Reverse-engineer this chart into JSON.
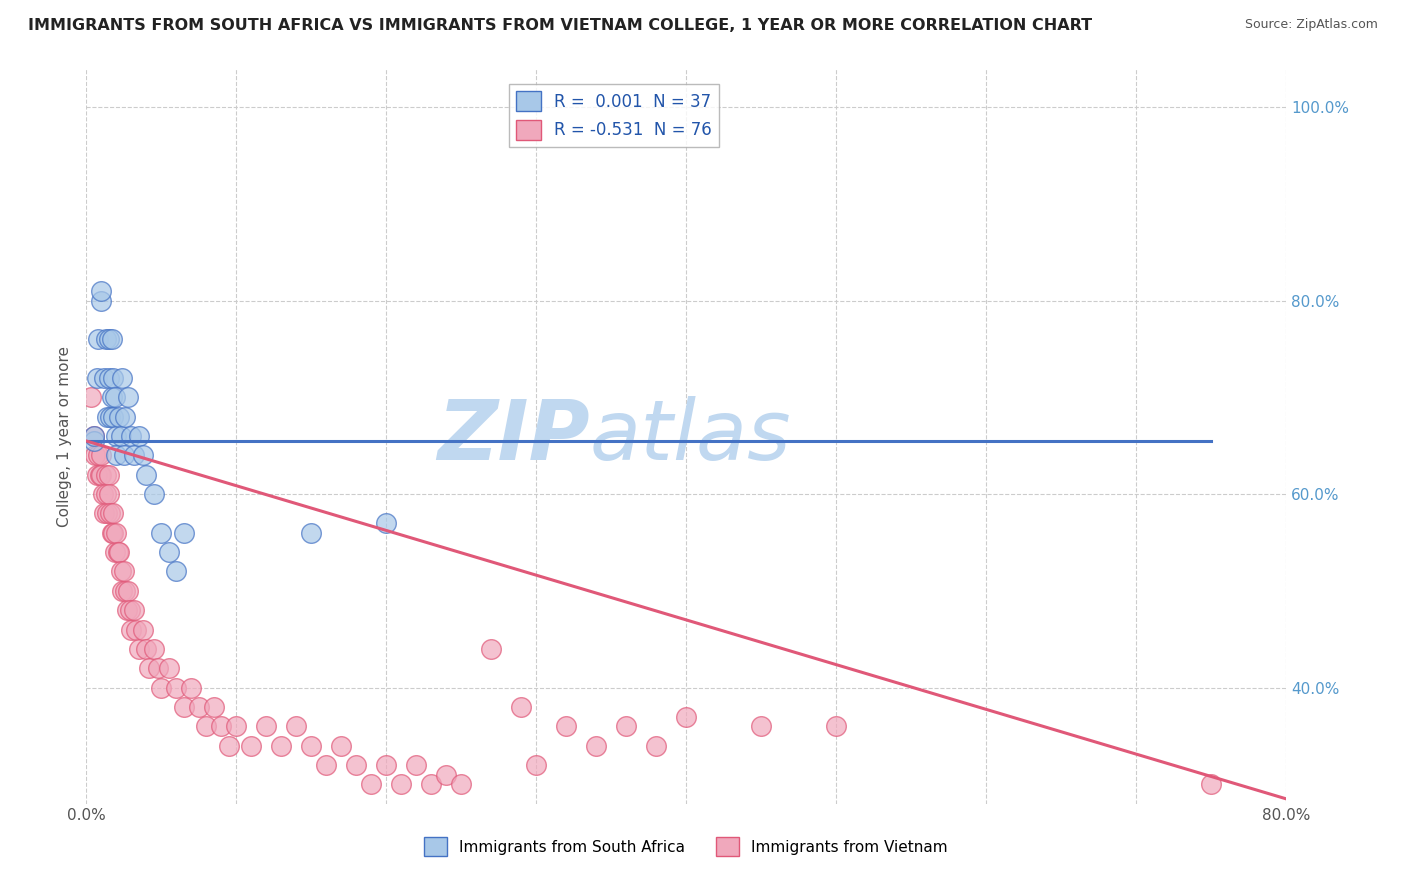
{
  "title": "IMMIGRANTS FROM SOUTH AFRICA VS IMMIGRANTS FROM VIETNAM COLLEGE, 1 YEAR OR MORE CORRELATION CHART",
  "source": "Source: ZipAtlas.com",
  "ylabel": "College, 1 year or more",
  "xlim": [
    0.0,
    0.8
  ],
  "ylim": [
    0.28,
    1.04
  ],
  "xticks": [
    0.0,
    0.1,
    0.2,
    0.3,
    0.4,
    0.5,
    0.6,
    0.7,
    0.8
  ],
  "xticklabels": [
    "0.0%",
    "",
    "",
    "",
    "",
    "",
    "",
    "",
    "80.0%"
  ],
  "right_yticks": [
    0.4,
    0.6,
    0.8,
    1.0
  ],
  "right_yticklabels": [
    "40.0%",
    "60.0%",
    "80.0%",
    "100.0%"
  ],
  "color_sa": "#a8c8e8",
  "color_vn": "#f0a8bc",
  "line_color_sa": "#4472c4",
  "line_color_vn": "#e05878",
  "watermark": "ZIPAtlas",
  "watermark_color": "#c0d8f0",
  "background_color": "#ffffff",
  "grid_color": "#cccccc",
  "sa_line_y0": 0.655,
  "sa_line_y1": 0.655,
  "vn_line_y0": 0.655,
  "vn_line_y1": 0.285,
  "sa_x": [
    0.005,
    0.005,
    0.007,
    0.008,
    0.01,
    0.01,
    0.012,
    0.013,
    0.014,
    0.015,
    0.015,
    0.016,
    0.017,
    0.017,
    0.018,
    0.018,
    0.019,
    0.02,
    0.02,
    0.022,
    0.023,
    0.024,
    0.025,
    0.026,
    0.028,
    0.03,
    0.032,
    0.035,
    0.038,
    0.04,
    0.045,
    0.05,
    0.055,
    0.06,
    0.065,
    0.15,
    0.2
  ],
  "sa_y": [
    0.655,
    0.66,
    0.72,
    0.76,
    0.8,
    0.81,
    0.72,
    0.76,
    0.68,
    0.72,
    0.76,
    0.68,
    0.7,
    0.76,
    0.72,
    0.68,
    0.7,
    0.66,
    0.64,
    0.68,
    0.66,
    0.72,
    0.64,
    0.68,
    0.7,
    0.66,
    0.64,
    0.66,
    0.64,
    0.62,
    0.6,
    0.56,
    0.54,
    0.52,
    0.56,
    0.56,
    0.57
  ],
  "vn_x": [
    0.003,
    0.005,
    0.006,
    0.007,
    0.008,
    0.009,
    0.01,
    0.01,
    0.011,
    0.012,
    0.013,
    0.013,
    0.014,
    0.015,
    0.015,
    0.016,
    0.017,
    0.018,
    0.018,
    0.019,
    0.02,
    0.021,
    0.022,
    0.023,
    0.024,
    0.025,
    0.026,
    0.027,
    0.028,
    0.029,
    0.03,
    0.032,
    0.033,
    0.035,
    0.038,
    0.04,
    0.042,
    0.045,
    0.048,
    0.05,
    0.055,
    0.06,
    0.065,
    0.07,
    0.075,
    0.08,
    0.085,
    0.09,
    0.095,
    0.1,
    0.11,
    0.12,
    0.13,
    0.14,
    0.15,
    0.16,
    0.17,
    0.18,
    0.19,
    0.2,
    0.21,
    0.22,
    0.23,
    0.24,
    0.25,
    0.27,
    0.29,
    0.3,
    0.32,
    0.34,
    0.36,
    0.38,
    0.4,
    0.45,
    0.5,
    0.75
  ],
  "vn_y": [
    0.7,
    0.66,
    0.64,
    0.62,
    0.64,
    0.62,
    0.64,
    0.62,
    0.6,
    0.58,
    0.62,
    0.6,
    0.58,
    0.62,
    0.6,
    0.58,
    0.56,
    0.58,
    0.56,
    0.54,
    0.56,
    0.54,
    0.54,
    0.52,
    0.5,
    0.52,
    0.5,
    0.48,
    0.5,
    0.48,
    0.46,
    0.48,
    0.46,
    0.44,
    0.46,
    0.44,
    0.42,
    0.44,
    0.42,
    0.4,
    0.42,
    0.4,
    0.38,
    0.4,
    0.38,
    0.36,
    0.38,
    0.36,
    0.34,
    0.36,
    0.34,
    0.36,
    0.34,
    0.36,
    0.34,
    0.32,
    0.34,
    0.32,
    0.3,
    0.32,
    0.3,
    0.32,
    0.3,
    0.31,
    0.3,
    0.44,
    0.38,
    0.32,
    0.36,
    0.34,
    0.36,
    0.34,
    0.37,
    0.36,
    0.36,
    0.3
  ]
}
